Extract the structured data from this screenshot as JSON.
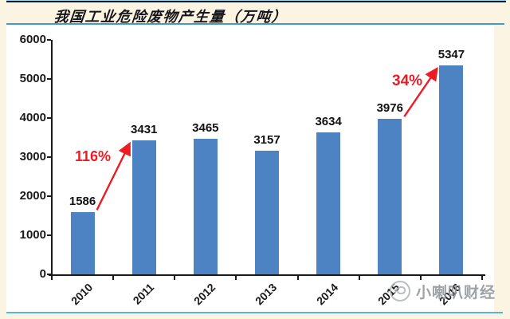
{
  "page": {
    "background_color": "#FBF4E2",
    "watermark": {
      "text": "小喇叭财经",
      "icon": "trumpet-logo-icon",
      "color": "#8E9296"
    }
  },
  "chart_data": {
    "type": "bar",
    "title": "我国工业危险废物产生量（万吨）",
    "categories": [
      "2010",
      "2011",
      "2012",
      "2013",
      "2014",
      "2015",
      "2016"
    ],
    "values": [
      1586,
      3431,
      3465,
      3157,
      3634,
      3976,
      5347
    ],
    "xlabel": "",
    "ylabel": "",
    "ylim": [
      0,
      6000
    ],
    "yticks": [
      0,
      1000,
      2000,
      3000,
      4000,
      5000,
      6000
    ],
    "grid": false,
    "legend_position": "none",
    "data_labels_shown": true,
    "bar_color": "#4D83C3",
    "axis_color": "#1A1A1A",
    "annotations": [
      {
        "text": "116%",
        "from": "2010",
        "to": "2011",
        "color": "#ED1C24"
      },
      {
        "text": "34%",
        "from": "2015",
        "to": "2016",
        "color": "#ED1C24"
      }
    ]
  },
  "colors": {
    "top_rule_dark": "#14141E",
    "top_rule_light": "#9ADCF2",
    "header_rule": "#3D9AD4",
    "bottom_rule": "#56B7DD",
    "panel_background": "#FFFFFF"
  }
}
